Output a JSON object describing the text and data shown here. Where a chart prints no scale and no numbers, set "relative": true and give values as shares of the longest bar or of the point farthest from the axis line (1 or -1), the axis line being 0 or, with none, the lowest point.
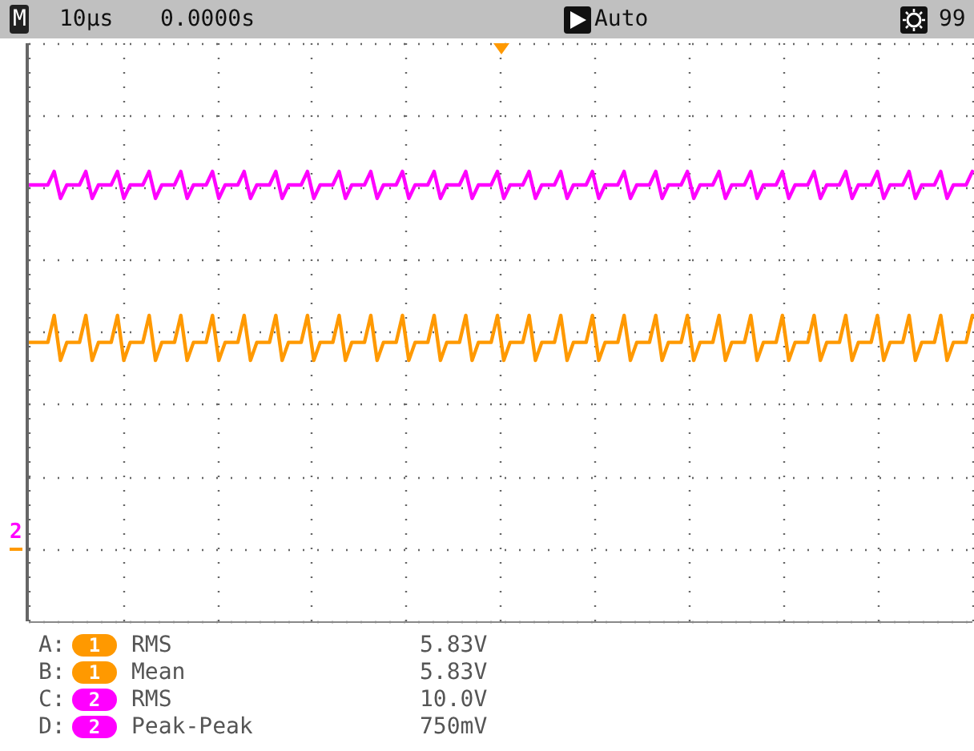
{
  "chart_data": {
    "type": "line",
    "relative": true,
    "grid": true,
    "marker": "none",
    "line_style": "solid",
    "legend": "bottom left",
    "categories": [
      null,
      null,
      null,
      null,
      null,
      null,
      null,
      null,
      null,
      null,
      null,
      null,
      null,
      null,
      null,
      null,
      null,
      null,
      null,
      null,
      null,
      null,
      null,
      null,
      null,
      null,
      null,
      null,
      null,
      null,
      null,
      null,
      null,
      null,
      null,
      null,
      null,
      null,
      null,
      null,
      null,
      null,
      null,
      null,
      null,
      null,
      null,
      null,
      null,
      null,
      null,
      null,
      null,
      null,
      null,
      null,
      null,
      null,
      null,
      null,
      null,
      null,
      null,
      null,
      null,
      null,
      null,
      null,
      null,
      null,
      null,
      null,
      null,
      null,
      null,
      null,
      null,
      null,
      null,
      null,
      null,
      null,
      null,
      null,
      null,
      null,
      null,
      null,
      null,
      null,
      null,
      null,
      null,
      null,
      null,
      null,
      null,
      null,
      null,
      null,
      null,
      null,
      null,
      null,
      null,
      null,
      null,
      null,
      null,
      null,
      null,
      null,
      null,
      null,
      null,
      null,
      null,
      null,
      null,
      null,
      null,
      null,
      null,
      null,
      null,
      null,
      null,
      null,
      null,
      null,
      null,
      null,
      null,
      null,
      null,
      null,
      null,
      null,
      null,
      null,
      null,
      null,
      null,
      null,
      null,
      null,
      null,
      null,
      null,
      null
    ],
    "series": [
      {
        "name": "1",
        "color": "#ff9900",
        "values": [
          0.62,
          0.62,
          0.62,
          0.62,
          0.68,
          0.58,
          0.62,
          0.62,
          0.62,
          0.68,
          0.58,
          0.62,
          0.62,
          0.62,
          0.68,
          0.58,
          0.62,
          0.62,
          0.62,
          0.68,
          0.58,
          0.62,
          0.62,
          0.62,
          0.68,
          0.58,
          0.62,
          0.62,
          0.62,
          0.68,
          0.58,
          0.62,
          0.62,
          0.62,
          0.68,
          0.58,
          0.62,
          0.62,
          0.62,
          0.68,
          0.58,
          0.62,
          0.62,
          0.62,
          0.68,
          0.58,
          0.62,
          0.62,
          0.62,
          0.68,
          0.58,
          0.62,
          0.62,
          0.62,
          0.68,
          0.58,
          0.62,
          0.62,
          0.62,
          0.68,
          0.58,
          0.62,
          0.62,
          0.62,
          0.68,
          0.58,
          0.62,
          0.62,
          0.62,
          0.68,
          0.58,
          0.62,
          0.62,
          0.62,
          0.68,
          0.58,
          0.62,
          0.62,
          0.62,
          0.68,
          0.58,
          0.62,
          0.62,
          0.62,
          0.68,
          0.58,
          0.62,
          0.62,
          0.62,
          0.68,
          0.58,
          0.62,
          0.62,
          0.62,
          0.68,
          0.58,
          0.62,
          0.62,
          0.62,
          0.68,
          0.58,
          0.62,
          0.62,
          0.62,
          0.68,
          0.58,
          0.62,
          0.62,
          0.62,
          0.68,
          0.58,
          0.62,
          0.62,
          0.62,
          0.68,
          0.58,
          0.62,
          0.62,
          0.62,
          0.68,
          0.58,
          0.62,
          0.62,
          0.62,
          0.68,
          0.58,
          0.62,
          0.62,
          0.62,
          0.68,
          0.58,
          0.62,
          0.62,
          0.62,
          0.68,
          0.58,
          0.62,
          0.62,
          0.62,
          0.68,
          0.58,
          0.62,
          0.62,
          0.62,
          0.68,
          0.58,
          0.62,
          0.62,
          0.62,
          0.68
        ]
      },
      {
        "name": "2",
        "color": "#ff00ff",
        "values": [
          0.97,
          0.97,
          0.97,
          0.97,
          1,
          0.94,
          0.97,
          0.97,
          0.97,
          1,
          0.94,
          0.97,
          0.97,
          0.97,
          1,
          0.94,
          0.97,
          0.97,
          0.97,
          1,
          0.94,
          0.97,
          0.97,
          0.97,
          1,
          0.94,
          0.97,
          0.97,
          0.97,
          1,
          0.94,
          0.97,
          0.97,
          0.97,
          1,
          0.94,
          0.97,
          0.97,
          0.97,
          1,
          0.94,
          0.97,
          0.97,
          0.97,
          1,
          0.94,
          0.97,
          0.97,
          0.97,
          1,
          0.94,
          0.97,
          0.97,
          0.97,
          1,
          0.94,
          0.97,
          0.97,
          0.97,
          1,
          0.94,
          0.97,
          0.97,
          0.97,
          1,
          0.94,
          0.97,
          0.97,
          0.97,
          1,
          0.94,
          0.97,
          0.97,
          0.97,
          1,
          0.94,
          0.97,
          0.97,
          0.97,
          1,
          0.94,
          0.97,
          0.97,
          0.97,
          1,
          0.94,
          0.97,
          0.97,
          0.97,
          1,
          0.94,
          0.97,
          0.97,
          0.97,
          1,
          0.94,
          0.97,
          0.97,
          0.97,
          1,
          0.94,
          0.97,
          0.97,
          0.97,
          1,
          0.94,
          0.97,
          0.97,
          0.97,
          1,
          0.94,
          0.97,
          0.97,
          0.97,
          1,
          0.94,
          0.97,
          0.97,
          0.97,
          1,
          0.94,
          0.97,
          0.97,
          0.97,
          1,
          0.94,
          0.97,
          0.97,
          0.97,
          1,
          0.94,
          0.97,
          0.97,
          0.97,
          1,
          0.94,
          0.97,
          0.97,
          0.97,
          1,
          0.94,
          0.97,
          0.97,
          0.97,
          1,
          0.94,
          0.97,
          0.97,
          0.97,
          1
        ]
      }
    ],
    "annotations": [
      "M",
      "10μs",
      "0.0000s",
      "Auto",
      "99",
      "2",
      "A:",
      "RMS",
      "5.83V",
      "B:",
      "Mean",
      "5.83V",
      "C:",
      "RMS",
      "10.0V",
      "D:",
      "Peak-Peak",
      "750mV"
    ]
  }
}
